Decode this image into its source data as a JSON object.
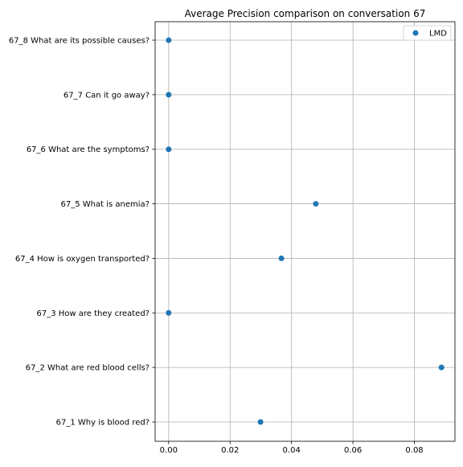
{
  "chart_data": {
    "type": "scatter",
    "title": "Average Precision comparison on conversation 67",
    "xlabel": "",
    "ylabel": "",
    "categories": [
      "67_1 Why is blood red?",
      "67_2 What are red blood cells?",
      "67_3 How are they created?",
      "67_4 How is oxygen transported?",
      "67_5 What is anemia?",
      "67_6 What are the symptoms?",
      "67_7 Can it go away?",
      "67_8 What are its possible causes?"
    ],
    "series": [
      {
        "name": "LMD",
        "color": "#1f77b4",
        "values": [
          0.0299,
          0.0888,
          0.0,
          0.0367,
          0.0479,
          0.0,
          0.0,
          0.0
        ]
      }
    ],
    "xlim": [
      -0.0044,
      0.0932
    ],
    "xticks": [
      0.0,
      0.02,
      0.04,
      0.06,
      0.08
    ],
    "xtick_labels": [
      "0.00",
      "0.02",
      "0.04",
      "0.06",
      "0.08"
    ],
    "grid": true,
    "legend_position": "top-right"
  }
}
